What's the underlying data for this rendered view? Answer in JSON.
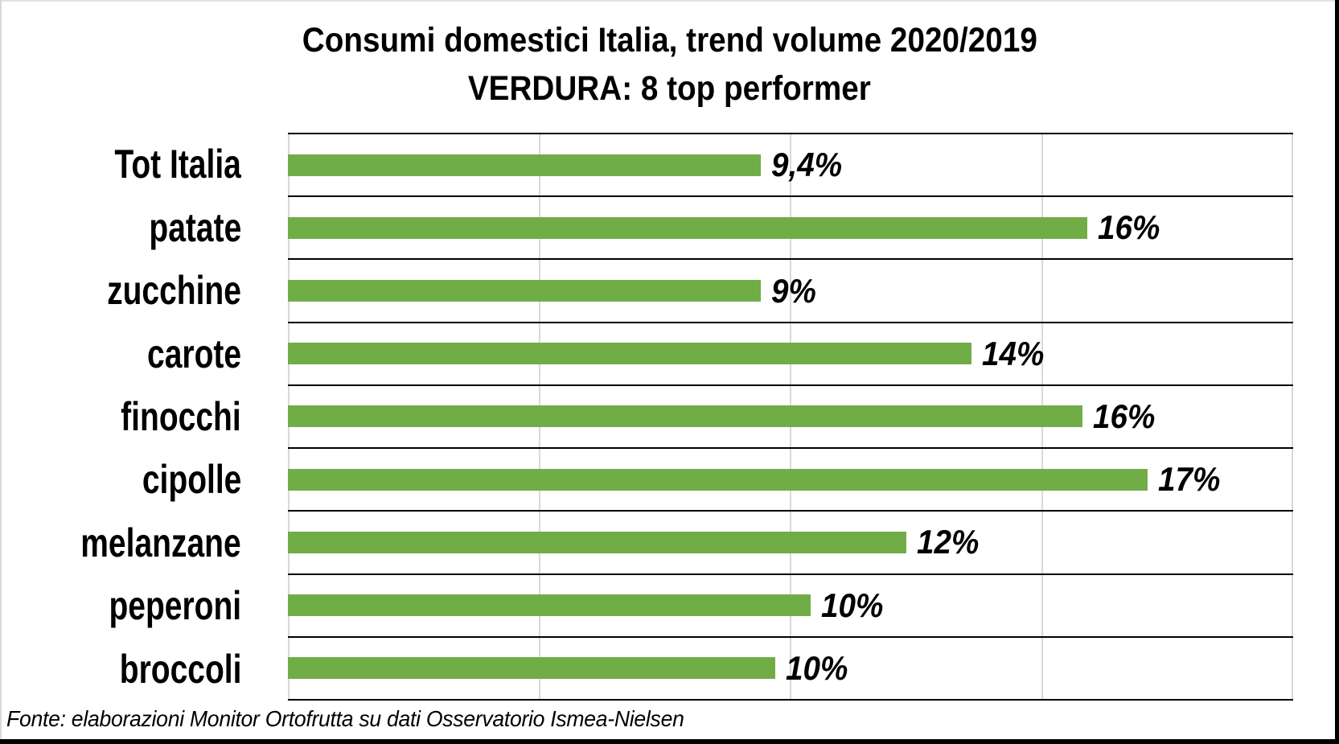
{
  "title": {
    "line1": "Consumi domestici Italia, trend volume 2020/2019",
    "line2": "VERDURA: 8 top performer"
  },
  "footer": "Fonte: elaborazioni Monitor Ortofrutta su dati Osservatorio Ismea-Nielsen",
  "colors": {
    "bar": "#70AD47",
    "gridline": "#D9D9D9",
    "row_separator": "#000000",
    "frame_border": "#000000",
    "background": "#FFFFFF"
  },
  "chart_data": {
    "type": "bar",
    "orientation": "horizontal",
    "title": "Consumi domestici Italia, trend volume 2020/2019 — VERDURA: 8 top performer",
    "xlabel": "",
    "ylabel": "",
    "xlim": [
      0,
      20
    ],
    "gridlines_pct": [
      0,
      5,
      10,
      15,
      20
    ],
    "grid": "vertical-light-gray, horizontal-black-separators",
    "legend": "none",
    "categories": [
      "Tot Italia",
      "patate",
      "zucchine",
      "carote",
      "finocchi",
      "cipolle",
      "melanzane",
      "peperoni",
      "broccoli"
    ],
    "values": [
      9.4,
      16,
      9,
      14,
      16,
      17,
      12,
      10,
      10
    ],
    "value_labels": [
      "9,4%",
      "16%",
      "9%",
      "14%",
      "16%",
      "17%",
      "12%",
      "10%",
      "10%"
    ],
    "bar_lengths_pct": [
      9.4,
      15.9,
      9.4,
      13.6,
      15.8,
      17.1,
      12.3,
      10.4,
      9.7
    ]
  }
}
